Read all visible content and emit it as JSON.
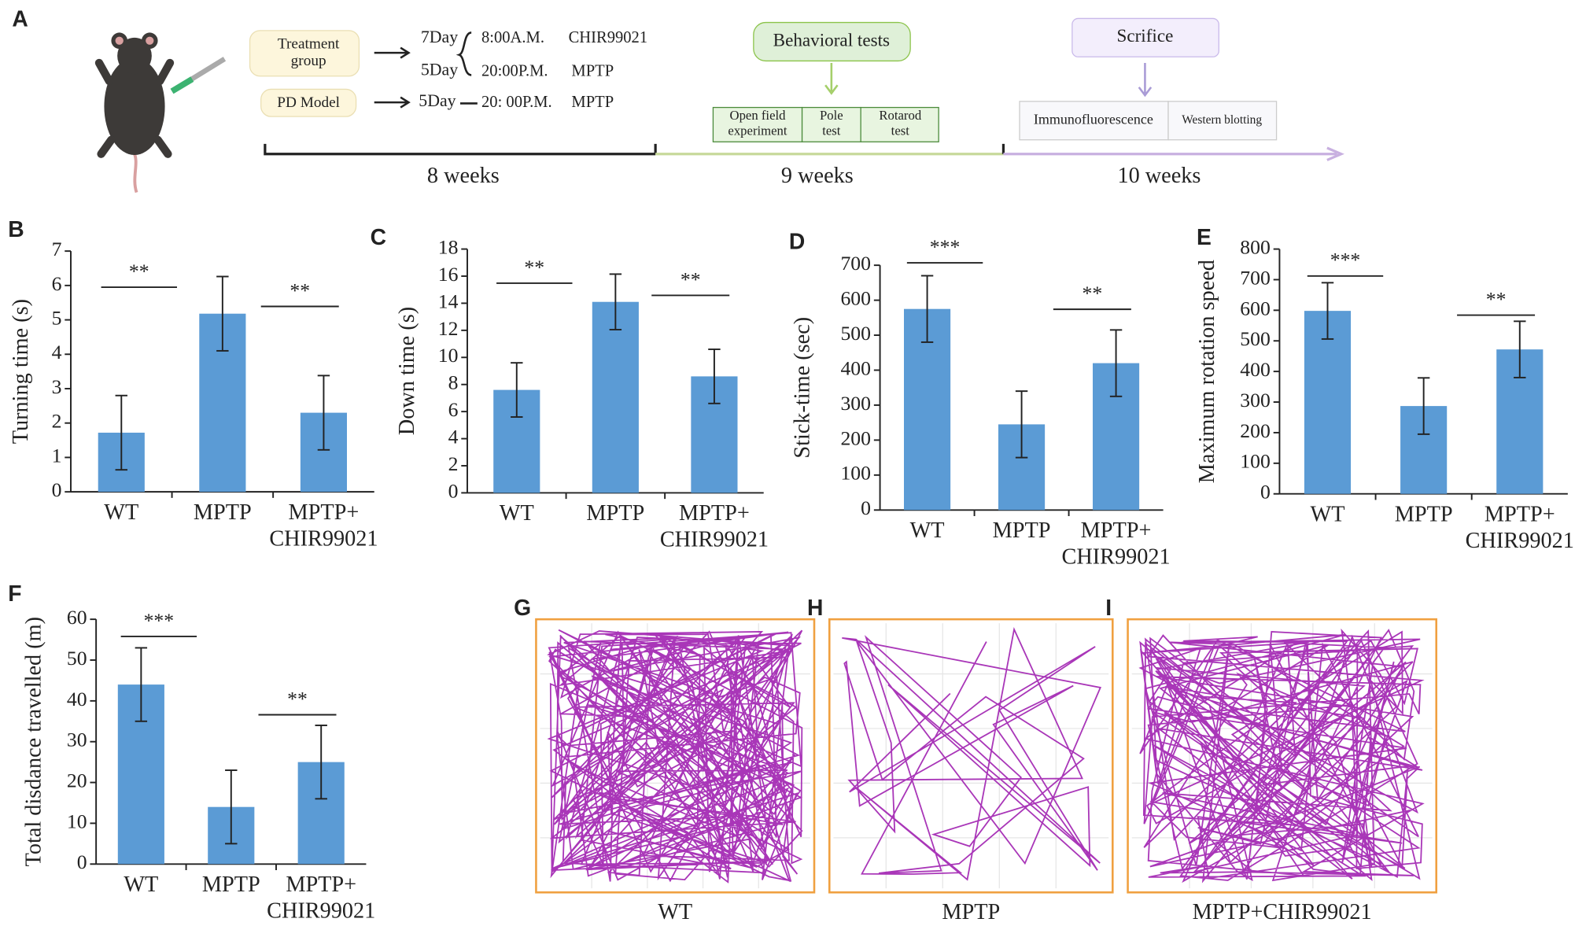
{
  "panel_a": {
    "panel": "A",
    "treatment": [
      "Treatment",
      "group"
    ],
    "pd_model": "PD Model",
    "day7": "7Day",
    "day5a": "5Day",
    "time_am": "8:00A.M.",
    "drug": "CHIR99021",
    "time_pm": "20:00P.M.",
    "toxin": "MPTP",
    "day5b": "5Day",
    "time_pm2": "20: 00P.M.",
    "toxin2": "MPTP",
    "behavioral": "Behavioral tests",
    "tests": [
      [
        "Open field",
        "experiment"
      ],
      [
        "Pole",
        "test"
      ],
      [
        "Rotarod",
        "test"
      ]
    ],
    "sacrifice": "Scrifice",
    "assays": [
      "Immunofluorescence",
      "Western blotting"
    ],
    "weeks": [
      "8 weeks",
      "9 weeks",
      "10 weeks"
    ]
  },
  "chart_data": [
    {
      "type": "bar",
      "panel": "B",
      "y_label": "Turning time (s)",
      "categories": [
        "WT",
        "MPTP",
        [
          "MPTP+",
          "CHIR99021"
        ]
      ],
      "values": [
        1.72,
        5.18,
        2.3
      ],
      "errors": [
        1.08,
        1.08,
        1.08
      ],
      "color": "#5b9bd5",
      "ylim": [
        0,
        7
      ],
      "yticks": [
        0,
        1,
        2,
        3,
        4,
        5,
        6,
        7
      ],
      "significance": [
        "**",
        "**"
      ]
    },
    {
      "type": "bar",
      "panel": "C",
      "y_label": "Down time (s)",
      "categories": [
        "WT",
        "MPTP",
        [
          "MPTP+",
          "CHIR99021"
        ]
      ],
      "values": [
        7.6,
        14.1,
        8.6
      ],
      "errors": [
        2.0,
        2.05,
        2.0
      ],
      "color": "#5b9bd5",
      "ylim": [
        0,
        18
      ],
      "yticks": [
        0,
        2,
        4,
        6,
        8,
        10,
        12,
        14,
        16,
        18
      ],
      "significance": [
        "**",
        "**"
      ]
    },
    {
      "type": "bar",
      "panel": "D",
      "y_label": "Stick-time (sec)",
      "categories": [
        "WT",
        "MPTP",
        [
          "MPTP+",
          "CHIR99021"
        ]
      ],
      "values": [
        575,
        245,
        420
      ],
      "errors": [
        95,
        95,
        95
      ],
      "color": "#5b9bd5",
      "ylim": [
        0,
        700
      ],
      "yticks": [
        0,
        100,
        200,
        300,
        400,
        500,
        600,
        700
      ],
      "significance": [
        "***",
        "**"
      ]
    },
    {
      "type": "bar",
      "panel": "E",
      "y_label": "Maximum rotation speed",
      "categories": [
        "WT",
        "MPTP",
        [
          "MPTP+",
          "CHIR99021"
        ]
      ],
      "values": [
        598,
        287,
        472
      ],
      "errors": [
        92,
        92,
        92
      ],
      "color": "#5b9bd5",
      "ylim": [
        0,
        800
      ],
      "yticks": [
        0,
        100,
        200,
        300,
        400,
        500,
        600,
        700,
        800
      ],
      "significance": [
        "***",
        "**"
      ]
    },
    {
      "type": "bar",
      "panel": "F",
      "y_label": "Total disdance travelled (m)",
      "categories": [
        "WT",
        "MPTP",
        [
          "MPTP+",
          "CHIR99021"
        ]
      ],
      "values": [
        44,
        14,
        25
      ],
      "errors": [
        9,
        9,
        9
      ],
      "color": "#5b9bd5",
      "ylim": [
        0,
        60
      ],
      "yticks": [
        0,
        10,
        20,
        30,
        40,
        50,
        60
      ],
      "significance": [
        "***",
        "**"
      ]
    }
  ],
  "tracks": [
    {
      "panel": "G",
      "label": "WT"
    },
    {
      "panel": "H",
      "label": "MPTP"
    },
    {
      "panel": "I",
      "label": "MPTP+CHIR99021"
    }
  ]
}
